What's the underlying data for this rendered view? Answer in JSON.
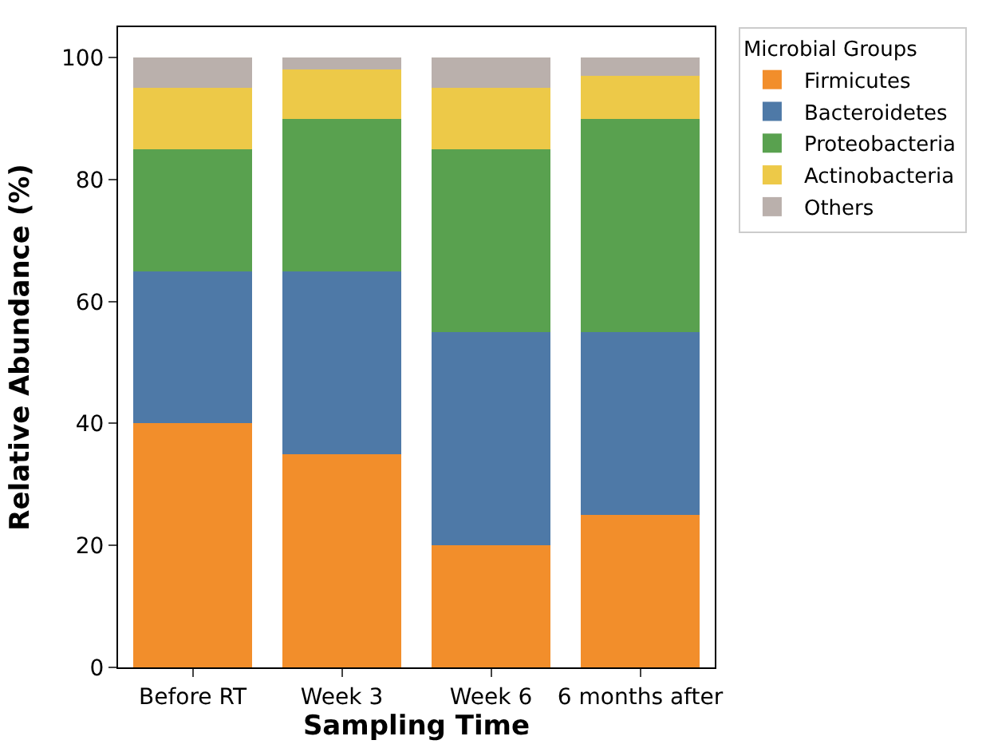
{
  "chart_data": {
    "type": "bar",
    "stacked": true,
    "xlabel": "Sampling Time",
    "ylabel": "Relative Abundance (%)",
    "legend_title": "Microbial Groups",
    "legend": "top right",
    "categories": [
      "Before RT",
      "Week 3",
      "Week 6",
      "6 months after"
    ],
    "ylim": [
      0,
      105
    ],
    "yticks": [
      0,
      20,
      40,
      60,
      80,
      100
    ],
    "series": [
      {
        "name": "Firmicutes",
        "color": "#f28e2b",
        "values": [
          40,
          35,
          20,
          25
        ]
      },
      {
        "name": "Bacteroidetes",
        "color": "#4e79a7",
        "values": [
          25,
          30,
          35,
          30
        ]
      },
      {
        "name": "Proteobacteria",
        "color": "#59a14f",
        "values": [
          20,
          25,
          30,
          35
        ]
      },
      {
        "name": "Actinobacteria",
        "color": "#edc948",
        "values": [
          10,
          8,
          10,
          7
        ]
      },
      {
        "name": "Others",
        "color": "#bab0ac",
        "values": [
          5,
          2,
          5,
          3
        ]
      }
    ]
  }
}
